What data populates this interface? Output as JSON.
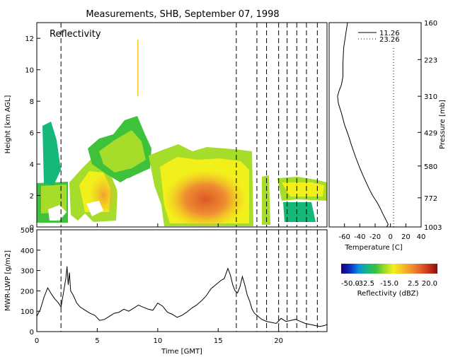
{
  "title": "Measurements, SHB, September 07, 1998",
  "colors": {
    "frame": "#000000",
    "background": "#ffffff",
    "lwp_line": "#000000"
  },
  "chart_data": [
    {
      "type": "heatmap",
      "name": "reflectivity",
      "panel_label": "Reflectivity",
      "ylabel": "Height [km AGL]",
      "xlim": [
        0,
        24
      ],
      "ylim": [
        0,
        13
      ],
      "yticks": [
        0,
        2,
        4,
        6,
        8,
        10,
        12
      ],
      "vertical_dashed_lines_gmt": [
        2.0,
        16.5,
        18.2,
        19.0,
        20.0,
        20.7,
        21.5,
        22.3,
        23.2
      ],
      "colorbar": {
        "label": "Reflectivity (dBZ)",
        "min": -50.0,
        "max": 20.0,
        "ticks": [
          "-50.0",
          "-32.5",
          "-15.0",
          "2.5",
          "20.0"
        ],
        "colors": [
          "#1a0070",
          "#0b2cc0",
          "#0a8fe0",
          "#16b87a",
          "#3ec23b",
          "#a6dc2a",
          "#f2f01a",
          "#f5c028",
          "#f09230",
          "#e46228",
          "#c83418",
          "#8a0c0a"
        ]
      }
    },
    {
      "type": "line",
      "name": "temperature_profile",
      "xlabel": "Temperature [C]",
      "ylabel": "Pressure [mb]",
      "xlim": [
        -80,
        40
      ],
      "xticks": [
        -60,
        -40,
        -20,
        0,
        20,
        40
      ],
      "ylim": [
        1003,
        160
      ],
      "yticks": [
        160,
        223,
        310,
        429,
        580,
        772,
        1003
      ],
      "series": [
        {
          "name": "11.26",
          "style": "solid",
          "points": [
            [
              -5,
              1003
            ],
            [
              -3,
              980
            ],
            [
              -6,
              940
            ],
            [
              -10,
              890
            ],
            [
              -14,
              840
            ],
            [
              -18,
              800
            ],
            [
              -23,
              760
            ],
            [
              -27,
              720
            ],
            [
              -31,
              680
            ],
            [
              -35,
              640
            ],
            [
              -40,
              590
            ],
            [
              -45,
              540
            ],
            [
              -50,
              490
            ],
            [
              -55,
              440
            ],
            [
              -60,
              400
            ],
            [
              -64,
              360
            ],
            [
              -68,
              330
            ],
            [
              -69,
              310
            ],
            [
              -67,
              295
            ],
            [
              -64,
              280
            ],
            [
              -62,
              260
            ],
            [
              -62,
              230
            ],
            [
              -61,
              200
            ],
            [
              -58,
              175
            ],
            [
              -56,
              160
            ]
          ]
        },
        {
          "name": "23.26",
          "style": "dotted",
          "points": [
            [
              4,
              1003
            ],
            [
              4,
              772
            ],
            [
              4,
              580
            ],
            [
              4,
              429
            ],
            [
              4,
              310
            ],
            [
              4,
              223
            ],
            [
              4,
              200
            ]
          ]
        }
      ]
    },
    {
      "type": "line",
      "name": "mwr_lwp",
      "xlabel": "Time [GMT]",
      "ylabel": "MWR-LWP [g/m2]",
      "xlim": [
        0,
        24
      ],
      "xticks": [
        0,
        5,
        10,
        15,
        20
      ],
      "ylim": [
        0,
        500
      ],
      "yticks": [
        0,
        100,
        200,
        300,
        400,
        500
      ],
      "vertical_dashed_lines_gmt": [
        2.0,
        16.5,
        18.2,
        19.0,
        20.0,
        20.7,
        21.5,
        22.3,
        23.2
      ],
      "series": [
        {
          "x": [
            0.0,
            0.3,
            0.6,
            0.9,
            1.2,
            1.5,
            1.8,
            2.0,
            2.2,
            2.4,
            2.5,
            2.6,
            2.7,
            2.8,
            3.0,
            3.3,
            3.6,
            4.0,
            4.4,
            4.8,
            5.2,
            5.6,
            6.0,
            6.4,
            6.8,
            7.2,
            7.6,
            8.0,
            8.4,
            8.8,
            9.2,
            9.6,
            10.0,
            10.4,
            10.8,
            11.2,
            11.6,
            12.0,
            12.4,
            12.8,
            13.2,
            13.6,
            14.0,
            14.4,
            14.8,
            15.2,
            15.5,
            15.8,
            16.0,
            16.2,
            16.4,
            16.6,
            16.8,
            17.0,
            17.2,
            17.4,
            17.6,
            17.8,
            18.0,
            18.3,
            18.6,
            19.0,
            19.4,
            19.8,
            20.2,
            20.6,
            21.0,
            21.4,
            21.8,
            22.2,
            22.6,
            23.0,
            23.4,
            23.8,
            24.0
          ],
          "values": [
            75,
            110,
            170,
            215,
            185,
            160,
            140,
            120,
            190,
            260,
            320,
            230,
            290,
            200,
            180,
            140,
            120,
            105,
            90,
            80,
            55,
            60,
            75,
            90,
            95,
            110,
            100,
            115,
            130,
            120,
            110,
            105,
            140,
            125,
            95,
            85,
            70,
            80,
            95,
            115,
            130,
            150,
            175,
            210,
            230,
            250,
            260,
            310,
            280,
            230,
            200,
            190,
            220,
            270,
            230,
            180,
            150,
            110,
            90,
            75,
            60,
            50,
            45,
            40,
            65,
            50,
            55,
            60,
            50,
            40,
            35,
            30,
            25,
            30,
            35
          ]
        }
      ]
    }
  ]
}
